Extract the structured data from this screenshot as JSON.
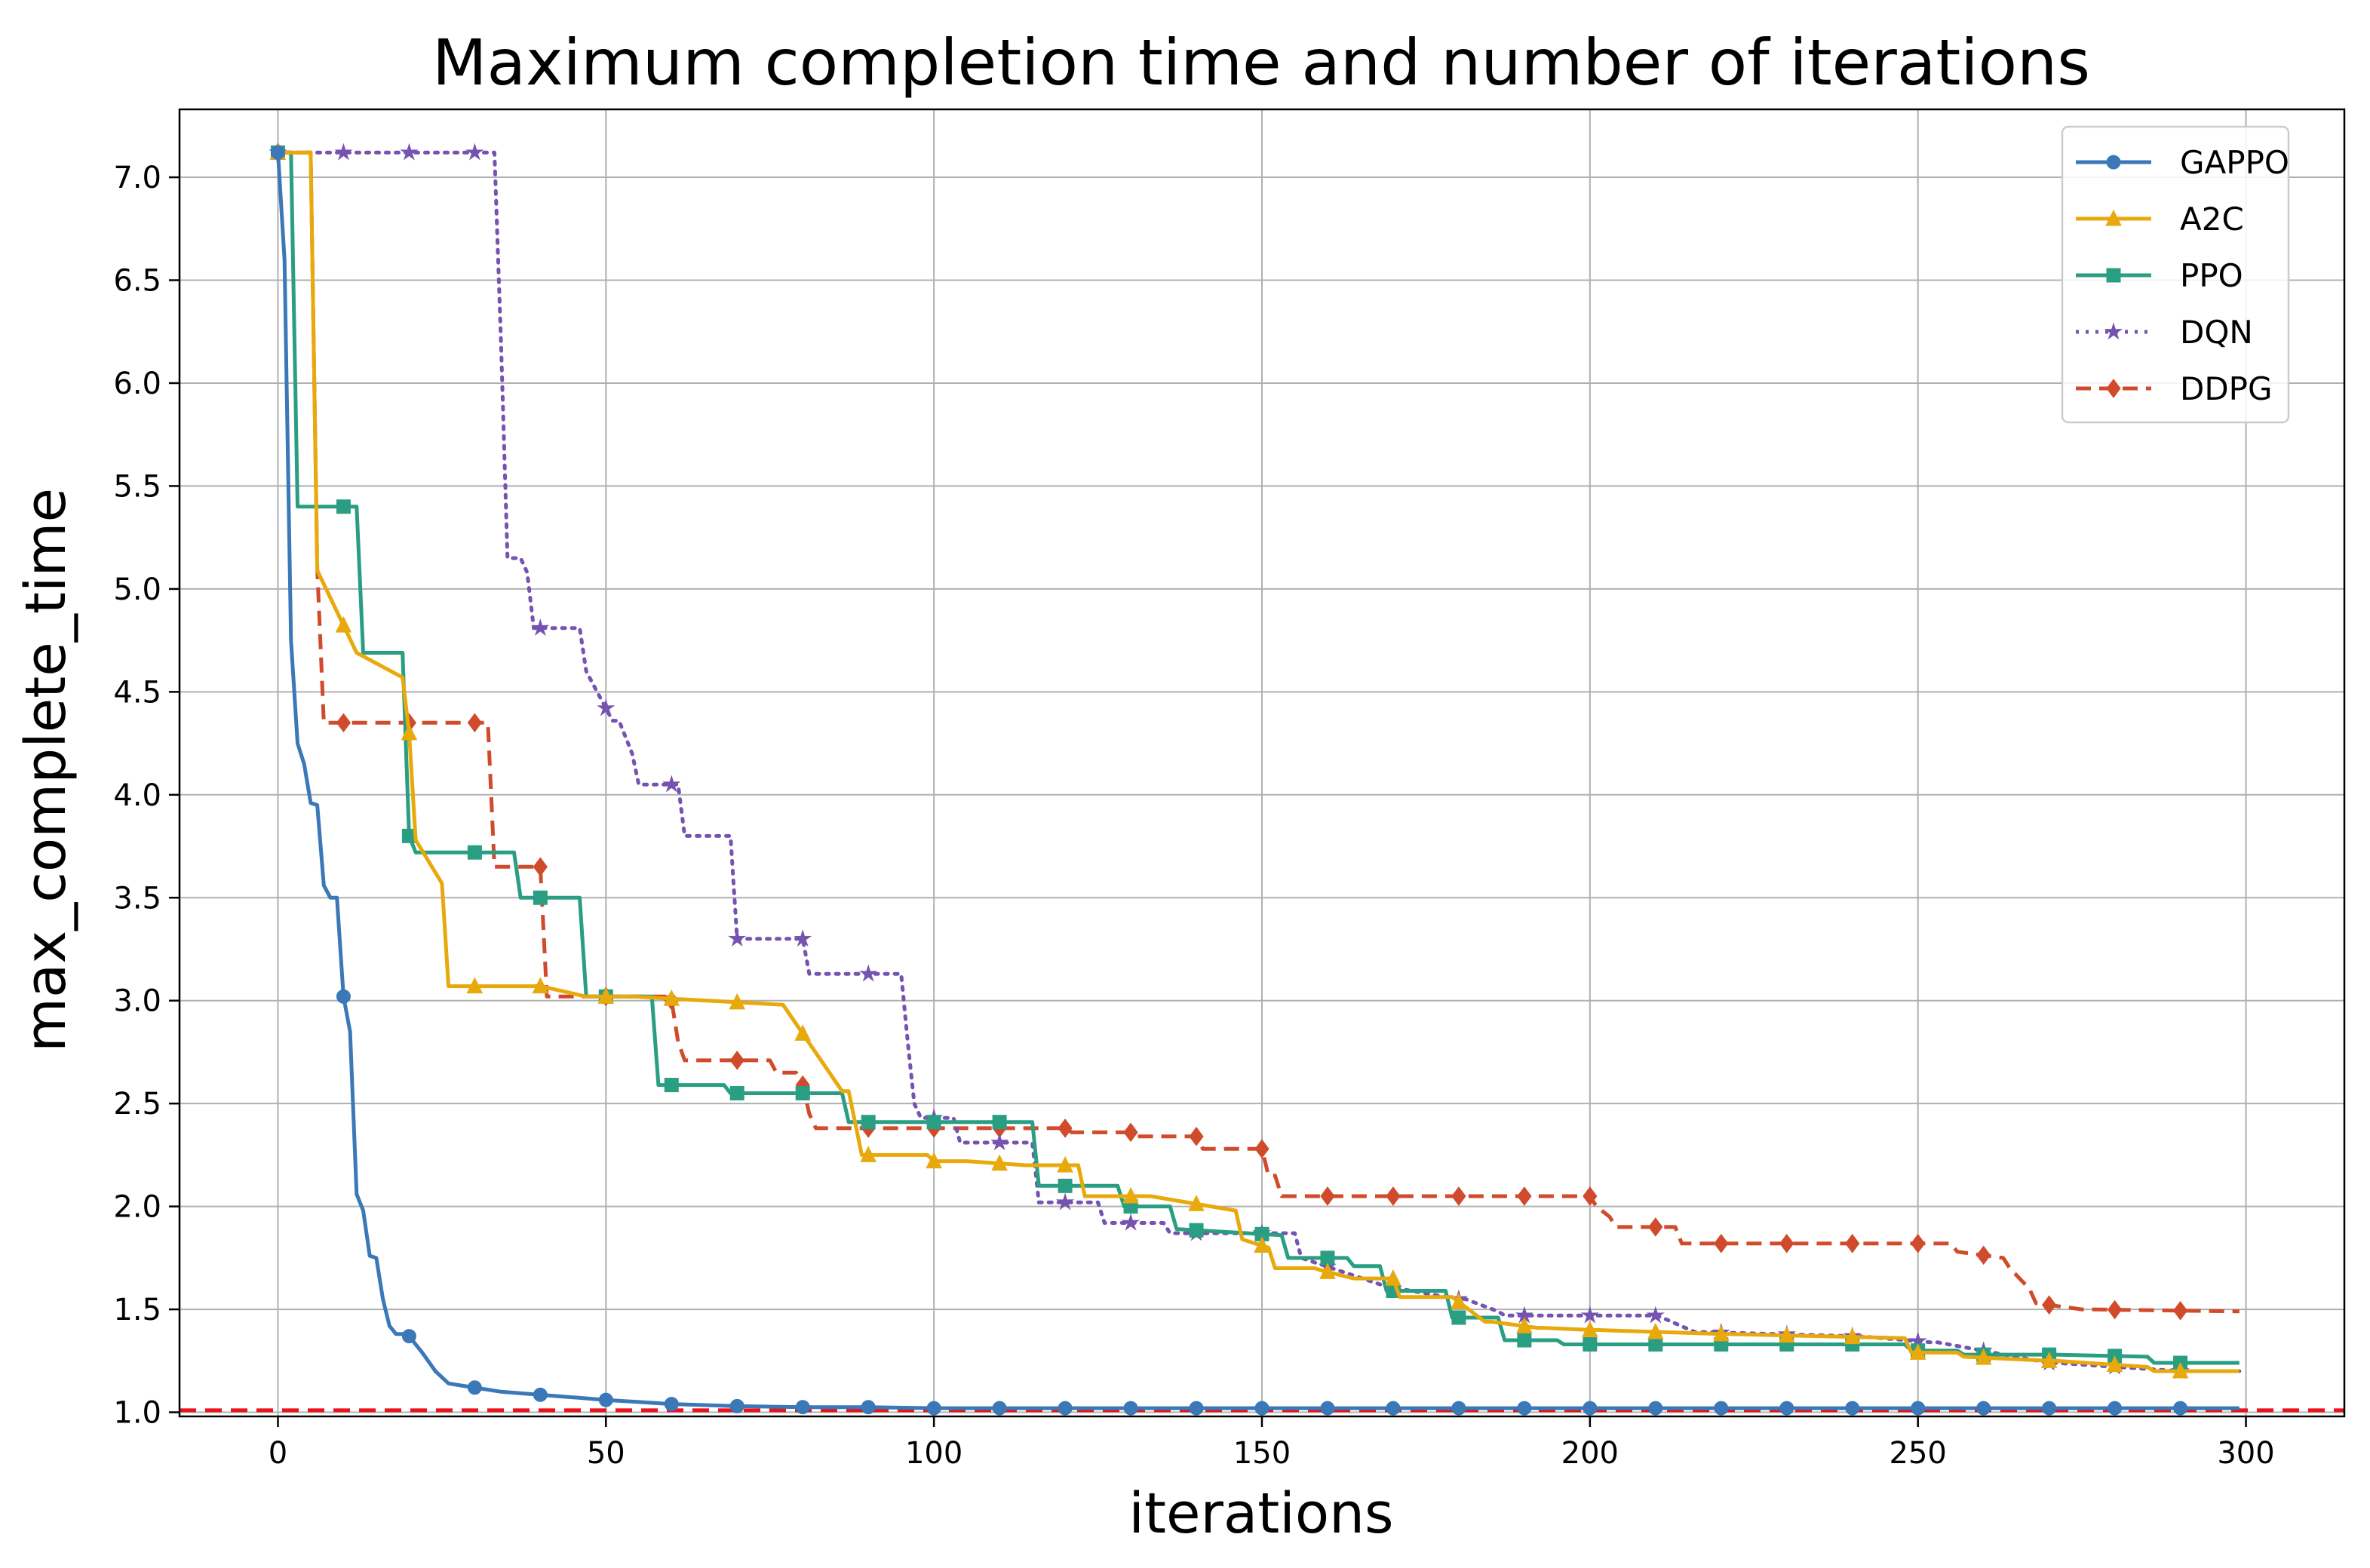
{
  "chart_data": {
    "type": "line",
    "title": "Maximum completion time and number of iterations",
    "xlabel": "iterations",
    "ylabel": "max_complete_time",
    "xlim": [
      -15,
      315
    ],
    "ylim": [
      0.98,
      7.33
    ],
    "xticks": [
      "0",
      "50",
      "100",
      "150",
      "200",
      "250",
      "300"
    ],
    "xtick_values": [
      0,
      50,
      100,
      150,
      200,
      250,
      300
    ],
    "yticks": [
      "1.0",
      "1.5",
      "2.0",
      "2.5",
      "3.0",
      "3.5",
      "4.0",
      "4.5",
      "5.0",
      "5.5",
      "6.0",
      "6.5",
      "7.0"
    ],
    "ytick_values": [
      1.0,
      1.5,
      2.0,
      2.5,
      3.0,
      3.5,
      4.0,
      4.5,
      5.0,
      5.5,
      6.0,
      6.5,
      7.0
    ],
    "grid": true,
    "legend_position": "top-right",
    "reference_line": {
      "y": 1.01,
      "color": "#e8131b",
      "style": "dashed"
    },
    "series": [
      {
        "name": "GAPPO",
        "color": "#3a78b8",
        "marker": "circle",
        "style": "solid",
        "step": false,
        "x": [
          0,
          1,
          2,
          3,
          4,
          5,
          6,
          7,
          8,
          9,
          10,
          11,
          12,
          13,
          14,
          15,
          16,
          17,
          18,
          19,
          20,
          22,
          24,
          26,
          28,
          30,
          34,
          38,
          42,
          46,
          50,
          55,
          60,
          65,
          70,
          80,
          90,
          100,
          150,
          200,
          250,
          299
        ],
        "y": [
          7.12,
          6.6,
          4.75,
          4.25,
          4.15,
          3.96,
          3.95,
          3.56,
          3.5,
          3.5,
          3.02,
          2.85,
          2.06,
          1.98,
          1.76,
          1.75,
          1.55,
          1.42,
          1.38,
          1.38,
          1.37,
          1.29,
          1.2,
          1.14,
          1.13,
          1.12,
          1.1,
          1.09,
          1.08,
          1.07,
          1.06,
          1.05,
          1.04,
          1.035,
          1.03,
          1.025,
          1.025,
          1.02,
          1.02,
          1.02,
          1.02,
          1.02
        ]
      },
      {
        "name": "A2C",
        "color": "#e8a90c",
        "marker": "triangle",
        "style": "solid",
        "step": true,
        "x": [
          0,
          5,
          6,
          12,
          19,
          20,
          21,
          25,
          26,
          40,
          47,
          48,
          54,
          77,
          86,
          87,
          89,
          99,
          100,
          105,
          114,
          115,
          122,
          123,
          132,
          133,
          146,
          147,
          151,
          152,
          158,
          159,
          164,
          165,
          170,
          171,
          178,
          179,
          184,
          185,
          192,
          193,
          200,
          201,
          220,
          221,
          248,
          249,
          256,
          257,
          270,
          271,
          285,
          286,
          299
        ],
        "y": [
          7.12,
          7.12,
          5.09,
          4.69,
          4.57,
          4.3,
          3.78,
          3.57,
          3.07,
          3.07,
          3.02,
          3.02,
          3.02,
          2.98,
          2.56,
          2.56,
          2.25,
          2.25,
          2.22,
          2.22,
          2.2,
          2.2,
          2.2,
          2.05,
          2.05,
          2.05,
          1.98,
          1.84,
          1.8,
          1.7,
          1.7,
          1.69,
          1.65,
          1.65,
          1.65,
          1.56,
          1.56,
          1.56,
          1.44,
          1.44,
          1.41,
          1.41,
          1.4,
          1.4,
          1.38,
          1.38,
          1.36,
          1.29,
          1.29,
          1.27,
          1.25,
          1.25,
          1.22,
          1.2,
          1.2
        ]
      },
      {
        "name": "PPO",
        "color": "#2a9e82",
        "marker": "square",
        "style": "solid",
        "step": true,
        "x": [
          0,
          2,
          3,
          12,
          13,
          19,
          20,
          21,
          36,
          37,
          46,
          47,
          57,
          58,
          68,
          69,
          86,
          87,
          107,
          108,
          115,
          116,
          128,
          129,
          136,
          137,
          153,
          154,
          163,
          164,
          168,
          169,
          178,
          179,
          186,
          187,
          195,
          196,
          210,
          211,
          248,
          249,
          256,
          257,
          270,
          271,
          285,
          286,
          299
        ],
        "y": [
          7.12,
          7.12,
          5.4,
          5.4,
          4.69,
          4.69,
          3.8,
          3.72,
          3.72,
          3.5,
          3.5,
          3.02,
          3.02,
          2.59,
          2.59,
          2.55,
          2.55,
          2.41,
          2.41,
          2.41,
          2.41,
          2.1,
          2.1,
          2.0,
          2.0,
          1.89,
          1.86,
          1.75,
          1.75,
          1.71,
          1.71,
          1.59,
          1.59,
          1.46,
          1.46,
          1.35,
          1.35,
          1.33,
          1.33,
          1.33,
          1.33,
          1.3,
          1.3,
          1.28,
          1.28,
          1.28,
          1.27,
          1.24,
          1.24
        ]
      },
      {
        "name": "DQN",
        "color": "#7553b0",
        "marker": "star",
        "style": "dotted",
        "step": true,
        "x": [
          0,
          33,
          34,
          35,
          37,
          38,
          39,
          46,
          47,
          51,
          52,
          54,
          55,
          61,
          62,
          69,
          70,
          80,
          81,
          95,
          96,
          97,
          98,
          103,
          104,
          115,
          116,
          125,
          126,
          135,
          136,
          155,
          156,
          170,
          171,
          180,
          181,
          186,
          187,
          210,
          211,
          216,
          217,
          240,
          241,
          252,
          253,
          270,
          271,
          290,
          291,
          299
        ],
        "y": [
          7.12,
          7.12,
          6.2,
          5.15,
          5.15,
          5.08,
          4.81,
          4.81,
          4.6,
          4.36,
          4.36,
          4.2,
          4.05,
          4.05,
          3.8,
          3.8,
          3.3,
          3.3,
          3.13,
          3.13,
          2.8,
          2.5,
          2.43,
          2.43,
          2.31,
          2.31,
          2.02,
          2.02,
          1.92,
          1.92,
          1.87,
          1.87,
          1.75,
          1.6,
          1.6,
          1.55,
          1.55,
          1.49,
          1.47,
          1.47,
          1.46,
          1.39,
          1.39,
          1.37,
          1.37,
          1.34,
          1.34,
          1.24,
          1.24,
          1.2,
          1.2,
          1.2
        ]
      },
      {
        "name": "DDPG",
        "color": "#d04b2c",
        "marker": "diamond",
        "style": "dashed",
        "step": true,
        "x": [
          0,
          5,
          6,
          7,
          32,
          33,
          40,
          41,
          59,
          60,
          61,
          62,
          75,
          76,
          79,
          80,
          81,
          82,
          120,
          121,
          130,
          131,
          140,
          141,
          150,
          151,
          152,
          153,
          200,
          201,
          203,
          204,
          213,
          214,
          255,
          256,
          263,
          264,
          267,
          268,
          275,
          276,
          299
        ],
        "y": [
          7.12,
          7.12,
          5.1,
          4.35,
          4.35,
          3.65,
          3.65,
          3.02,
          3.02,
          3.0,
          2.8,
          2.71,
          2.71,
          2.65,
          2.65,
          2.59,
          2.45,
          2.38,
          2.38,
          2.36,
          2.36,
          2.34,
          2.34,
          2.28,
          2.28,
          2.15,
          2.15,
          2.05,
          2.05,
          2.0,
          1.95,
          1.9,
          1.9,
          1.82,
          1.82,
          1.78,
          1.75,
          1.7,
          1.6,
          1.53,
          1.5,
          1.5,
          1.49
        ]
      }
    ]
  }
}
